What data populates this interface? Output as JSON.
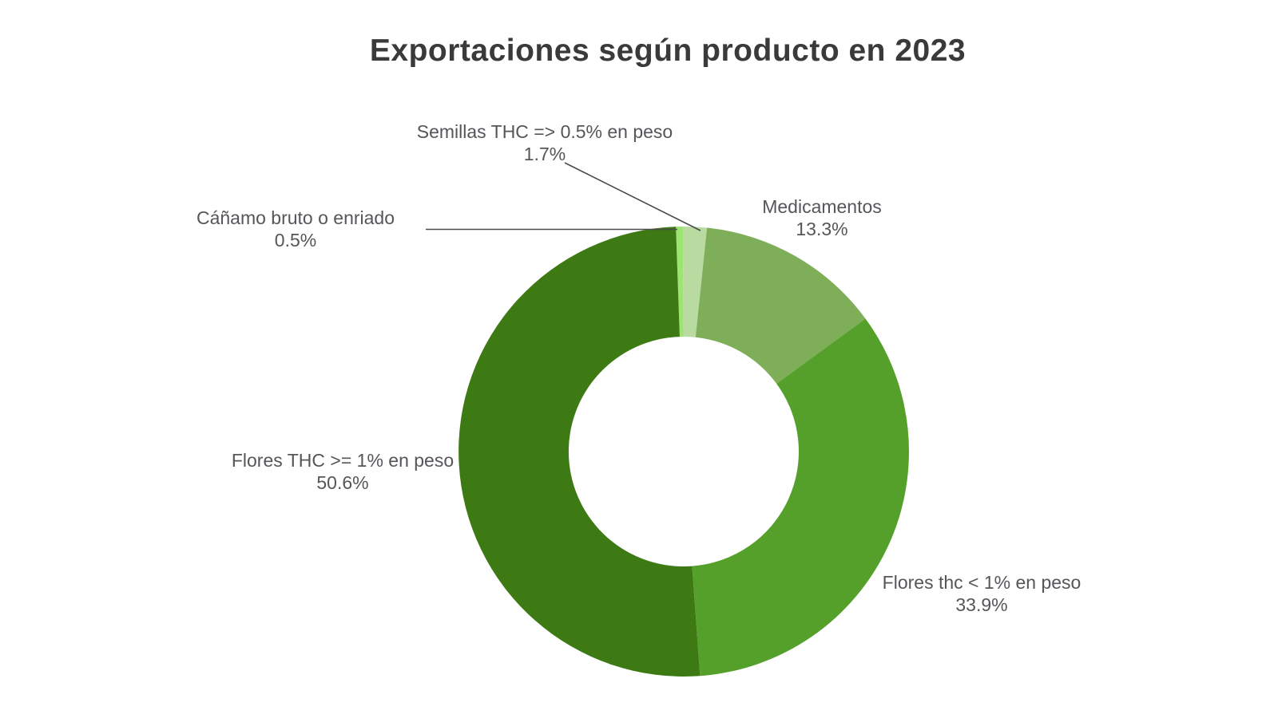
{
  "page": {
    "background_color": "#ffffff"
  },
  "chart_data": {
    "type": "pie",
    "subtype": "donut",
    "title": "Exportaciones según producto en 2023",
    "title_color": "#3a3a3c",
    "label_color": "#55565a",
    "leader_line_color": "#4a4a4a",
    "legend": "none",
    "label_style": "outside-with-leader-lines",
    "hole_ratio": 0.51,
    "start_angle_deg": -2,
    "direction": "clockwise-from-top",
    "slices": [
      {
        "label": "Cáñamo bruto o enriado",
        "value": 0.5,
        "pct_label": "0.5%",
        "color": "#9ee472"
      },
      {
        "label": "Semillas THC => 0.5% en peso",
        "value": 1.7,
        "pct_label": "1.7%",
        "color": "#b9dba1"
      },
      {
        "label": "Medicamentos",
        "value": 13.3,
        "pct_label": "13.3%",
        "color": "#7fae59"
      },
      {
        "label": "Flores thc < 1% en peso",
        "value": 33.9,
        "pct_label": "33.9%",
        "color": "#55a02b"
      },
      {
        "label": "Flores THC >= 1% en peso",
        "value": 50.6,
        "pct_label": "50.6%",
        "color": "#3e7a14"
      }
    ]
  }
}
